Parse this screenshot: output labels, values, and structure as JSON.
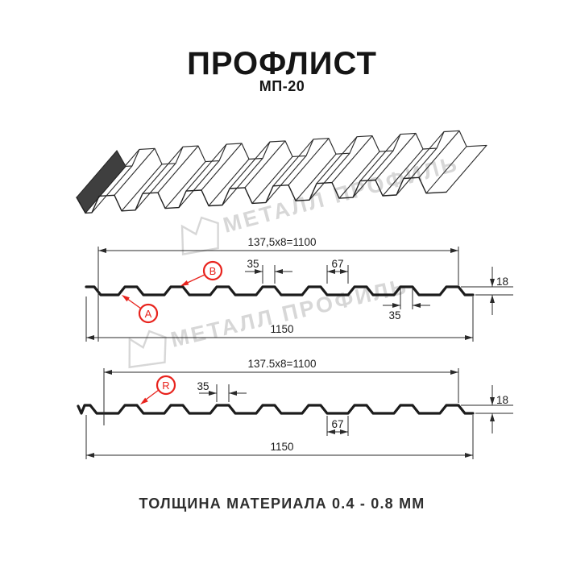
{
  "header": {
    "title": "ПРОФЛИСТ",
    "subtitle": "МП-20"
  },
  "watermark": {
    "text": "МЕТАЛЛ ПРОФИЛЬ",
    "logo": "metall-profil-logo"
  },
  "sections": [
    {
      "dim_formula": "137,5x8=1100",
      "dim_rib_top": "35",
      "dim_valley": "67",
      "dim_height": "18",
      "dim_rib_bottom": "35",
      "dim_total": "1150",
      "label_a": "A",
      "label_b": "B"
    },
    {
      "dim_formula": "137.5x8=1100",
      "dim_rib_top": "35",
      "dim_valley": "67",
      "dim_height": "18",
      "dim_total": "1150",
      "label_r": "R"
    }
  ],
  "footer": {
    "text": "ТОЛЩИНА МАТЕРИАЛА 0.4 - 0.8 ММ"
  },
  "colors": {
    "accent_red": "#e8231d",
    "line_black": "#1c1c1c",
    "dim_gray": "#2a2a2a",
    "watermark_gray": "#d7d7d7"
  }
}
